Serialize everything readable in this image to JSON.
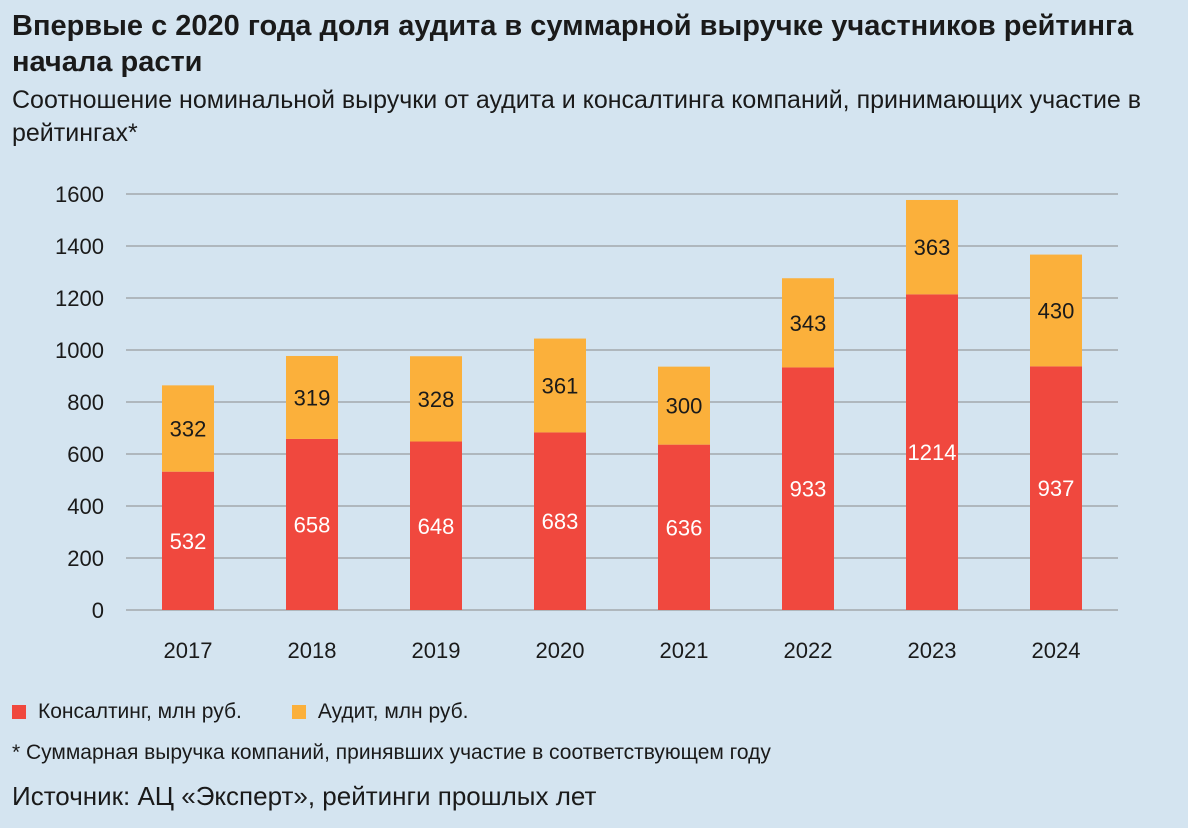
{
  "title": "Впервые с 2020 года доля аудита в суммарной выручке участников рейтинга начала расти",
  "subtitle": "Соотношение номинальной выручки от аудита и консалтинга компаний, принимающих участие в рейтингах*",
  "footnote": "* Суммарная выручка компаний, принявших участие в соответствующем году",
  "source": "Источник: АЦ «Эксперт», рейтинги прошлых лет",
  "chart_data": {
    "type": "bar",
    "stacked": true,
    "categories": [
      "2017",
      "2018",
      "2019",
      "2020",
      "2021",
      "2022",
      "2023",
      "2024"
    ],
    "series": [
      {
        "name": "Консалтинг, млн руб.",
        "values": [
          532,
          658,
          648,
          683,
          636,
          933,
          1214,
          937
        ],
        "color": "#f0483e",
        "label_color": "#ffffff"
      },
      {
        "name": "Аудит, млн руб.",
        "values": [
          332,
          319,
          328,
          361,
          300,
          343,
          363,
          430
        ],
        "color": "#fbb03b",
        "label_color": "#1a1a1a"
      }
    ],
    "ylim": [
      0,
      1600
    ],
    "yticks": [
      0,
      200,
      400,
      600,
      800,
      1000,
      1200,
      1400,
      1600
    ],
    "grid": true,
    "legend_position": "bottom-left"
  }
}
